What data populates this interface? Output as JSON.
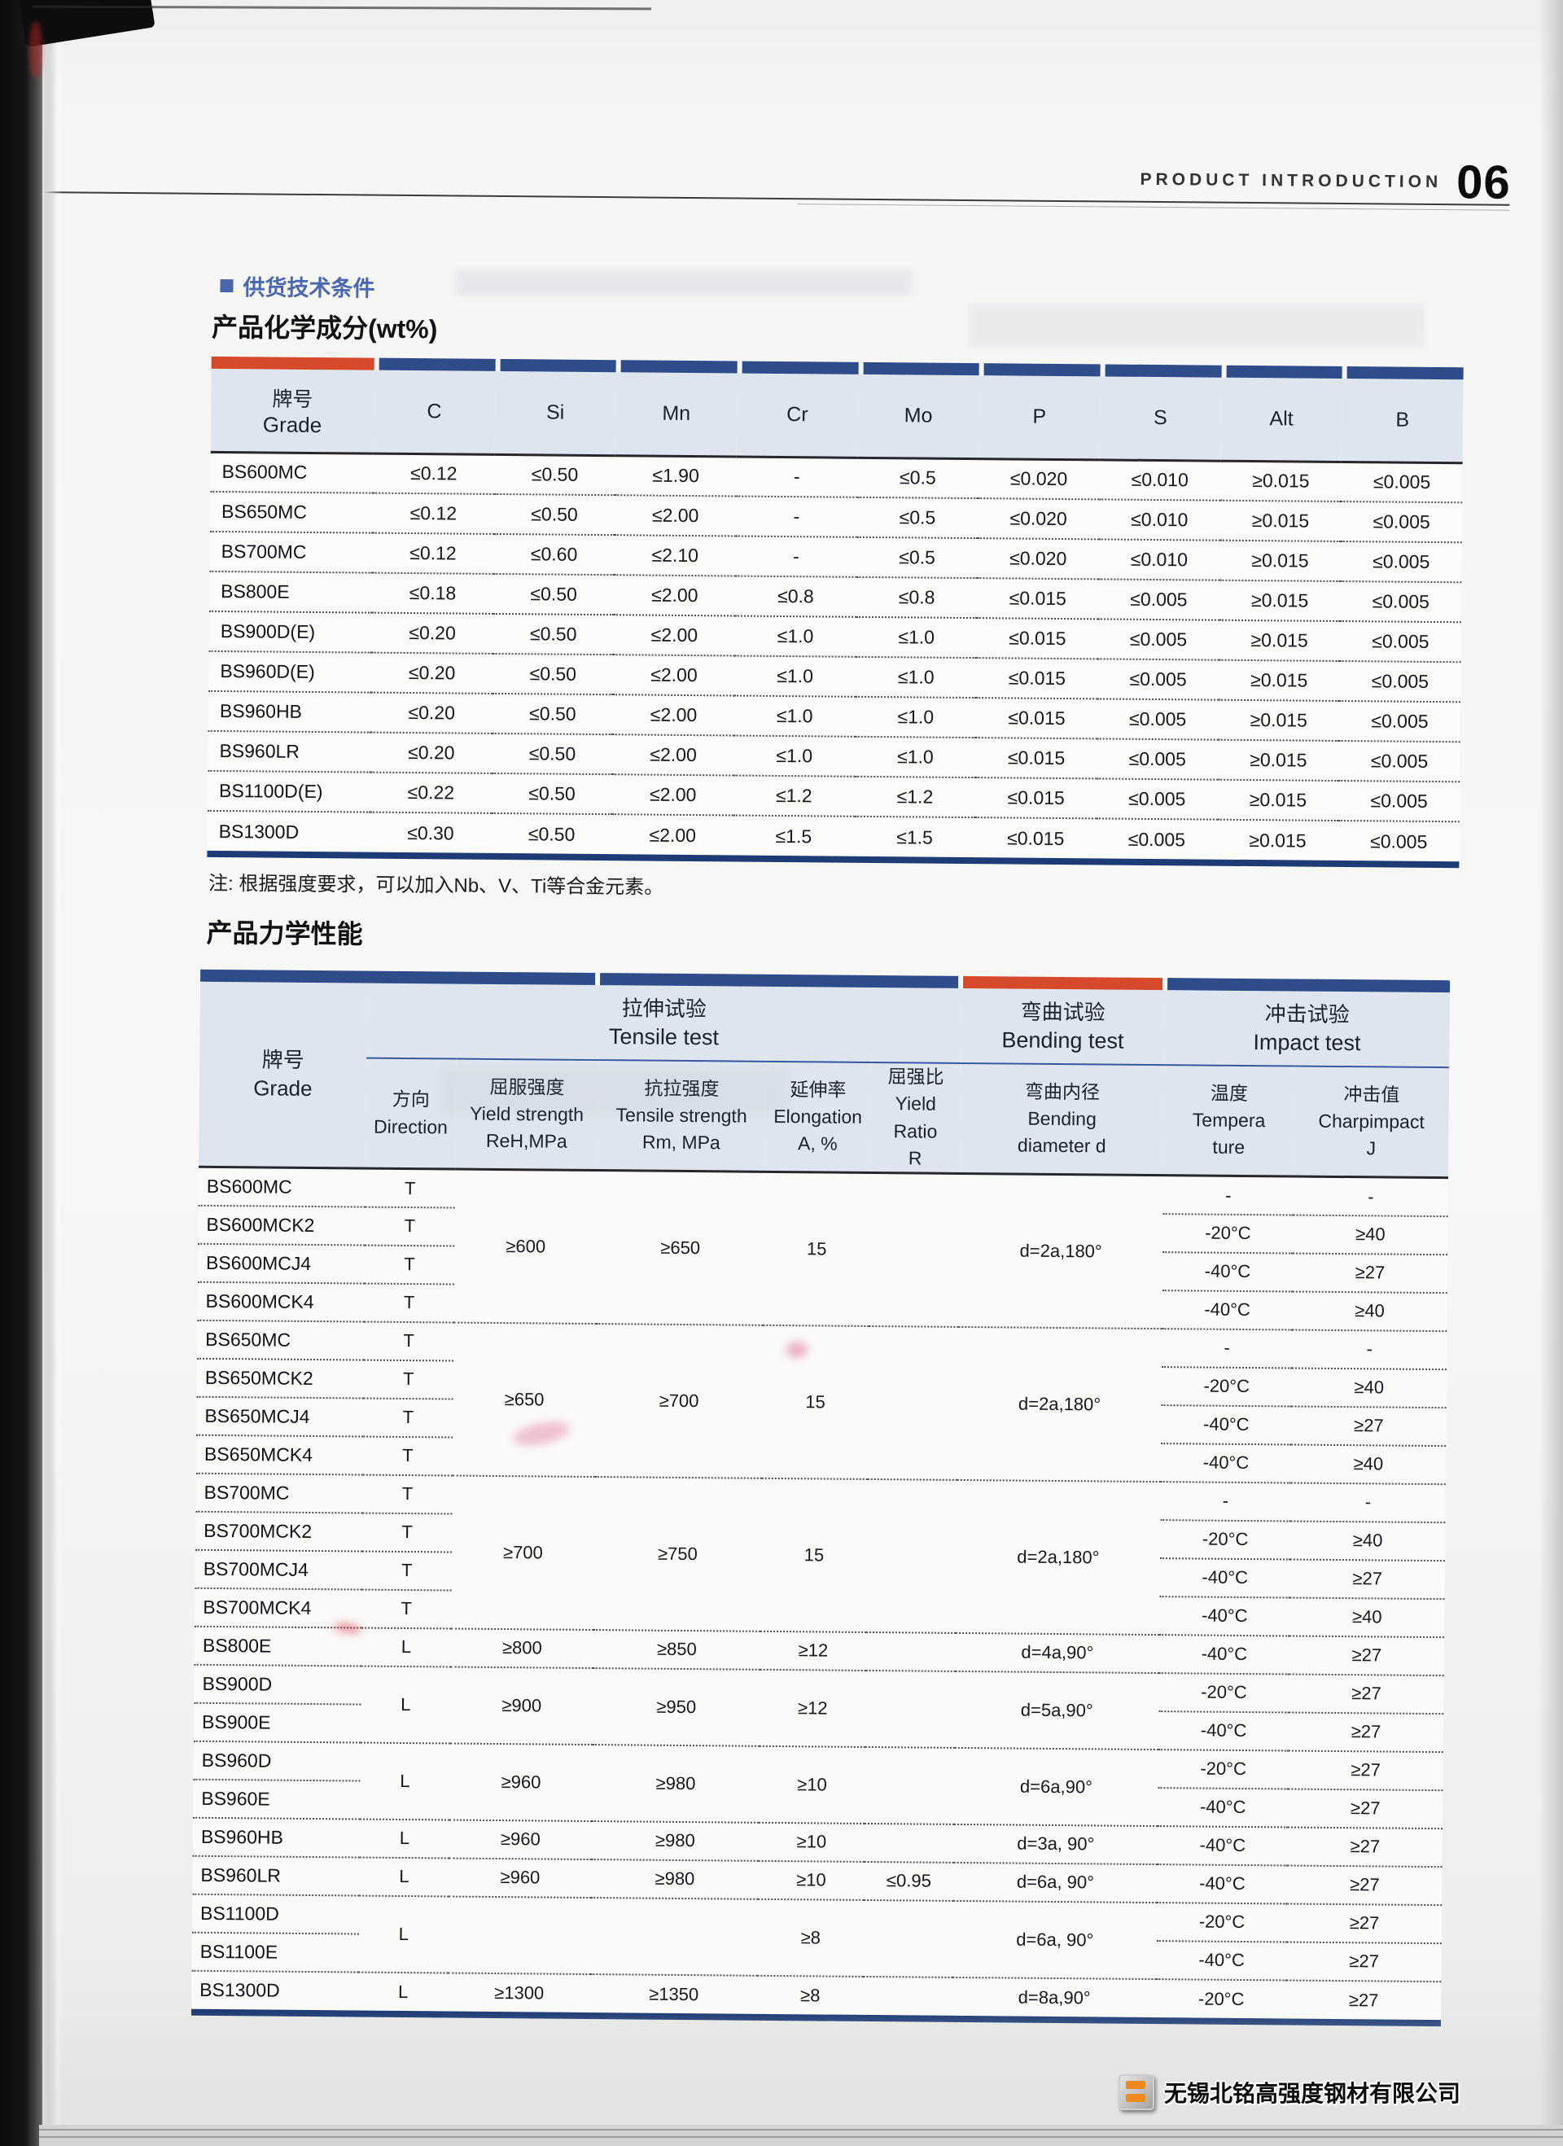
{
  "page": {
    "header": {
      "label": "PRODUCT INTRODUCTION",
      "page_number": "06"
    },
    "section_tag": "供货技术条件",
    "chem_title": "产品化学成分(wt%)",
    "chem_note": "注: 根据强度要求，可以加入Nb、V、Ti等合金元素。",
    "mech_title": "产品力学性能",
    "footer_company": "无锡北铭高强度钢材有限公司"
  },
  "colors": {
    "bar_blue": "#2d4c89",
    "accent_orange": "#d6492a",
    "header_bg": "#dee5ee",
    "table_bottom_navy": "#1d3b74",
    "section_blue": "#4967b1",
    "rule_blue": "#3a58a0"
  },
  "chem_table": {
    "grade_header": {
      "zh": "牌号",
      "en": "Grade"
    },
    "element_columns": [
      "C",
      "Si",
      "Mn",
      "Cr",
      "Mo",
      "P",
      "S",
      "Alt",
      "B"
    ],
    "rows": [
      {
        "grade": "BS600MC",
        "values": [
          "≤0.12",
          "≤0.50",
          "≤1.90",
          "-",
          "≤0.5",
          "≤0.020",
          "≤0.010",
          "≥0.015",
          "≤0.005"
        ]
      },
      {
        "grade": "BS650MC",
        "values": [
          "≤0.12",
          "≤0.50",
          "≤2.00",
          "-",
          "≤0.5",
          "≤0.020",
          "≤0.010",
          "≥0.015",
          "≤0.005"
        ]
      },
      {
        "grade": "BS700MC",
        "values": [
          "≤0.12",
          "≤0.60",
          "≤2.10",
          "-",
          "≤0.5",
          "≤0.020",
          "≤0.010",
          "≥0.015",
          "≤0.005"
        ]
      },
      {
        "grade": "BS800E",
        "values": [
          "≤0.18",
          "≤0.50",
          "≤2.00",
          "≤0.8",
          "≤0.8",
          "≤0.015",
          "≤0.005",
          "≥0.015",
          "≤0.005"
        ]
      },
      {
        "grade": "BS900D(E)",
        "values": [
          "≤0.20",
          "≤0.50",
          "≤2.00",
          "≤1.0",
          "≤1.0",
          "≤0.015",
          "≤0.005",
          "≥0.015",
          "≤0.005"
        ]
      },
      {
        "grade": "BS960D(E)",
        "values": [
          "≤0.20",
          "≤0.50",
          "≤2.00",
          "≤1.0",
          "≤1.0",
          "≤0.015",
          "≤0.005",
          "≥0.015",
          "≤0.005"
        ]
      },
      {
        "grade": "BS960HB",
        "values": [
          "≤0.20",
          "≤0.50",
          "≤2.00",
          "≤1.0",
          "≤1.0",
          "≤0.015",
          "≤0.005",
          "≥0.015",
          "≤0.005"
        ]
      },
      {
        "grade": "BS960LR",
        "values": [
          "≤0.20",
          "≤0.50",
          "≤2.00",
          "≤1.0",
          "≤1.0",
          "≤0.015",
          "≤0.005",
          "≥0.015",
          "≤0.005"
        ]
      },
      {
        "grade": "BS1100D(E)",
        "values": [
          "≤0.22",
          "≤0.50",
          "≤2.00",
          "≤1.2",
          "≤1.2",
          "≤0.015",
          "≤0.005",
          "≥0.015",
          "≤0.005"
        ]
      },
      {
        "grade": "BS1300D",
        "values": [
          "≤0.30",
          "≤0.50",
          "≤2.00",
          "≤1.5",
          "≤1.5",
          "≤0.015",
          "≤0.005",
          "≥0.015",
          "≤0.005"
        ]
      }
    ]
  },
  "mech_table": {
    "grade_header": {
      "zh": "牌号",
      "en": "Grade"
    },
    "groups": [
      {
        "zh": "拉伸试验",
        "en": "Tensile test",
        "span": 5
      },
      {
        "zh": "弯曲试验",
        "en": "Bending test",
        "span": 1
      },
      {
        "zh": "冲击试验",
        "en": "Impact test",
        "span": 2
      }
    ],
    "subcols": [
      {
        "zh": "方向",
        "en": "Direction",
        "unit": ""
      },
      {
        "zh": "屈服强度",
        "en": "Yield strength",
        "unit": "ReH,MPa"
      },
      {
        "zh": "抗拉强度",
        "en": "Tensile strength",
        "unit": "Rm, MPa"
      },
      {
        "zh": "延伸率",
        "en": "Elongation",
        "unit": "A, %"
      },
      {
        "zh": "屈强比",
        "en": "Yield Ratio",
        "unit": "R"
      },
      {
        "zh": "弯曲内径",
        "en": "Bending",
        "unit": "diameter d"
      },
      {
        "zh": "温度",
        "en": "Tempera",
        "unit": "ture"
      },
      {
        "zh": "冲击值",
        "en": "Charpimpact",
        "unit": "J"
      }
    ],
    "rows": [
      {
        "grade": "BS600MC",
        "cells": [
          "T",
          [
            "≥600",
            4
          ],
          [
            "≥650",
            4
          ],
          [
            "15",
            4
          ],
          [
            "",
            4
          ],
          [
            "d=2a,180°",
            4
          ],
          "-",
          "-"
        ]
      },
      {
        "grade": "BS600MCK2",
        "cells": [
          "T",
          null,
          null,
          null,
          null,
          null,
          "-20°C",
          "≥40"
        ]
      },
      {
        "grade": "BS600MCJ4",
        "cells": [
          "T",
          null,
          null,
          null,
          null,
          null,
          "-40°C",
          "≥27"
        ]
      },
      {
        "grade": "BS600MCK4",
        "cells": [
          "T",
          null,
          null,
          null,
          null,
          null,
          "-40°C",
          "≥40"
        ]
      },
      {
        "grade": "BS650MC",
        "cells": [
          "T",
          [
            "≥650",
            4
          ],
          [
            "≥700",
            4
          ],
          [
            "15",
            4
          ],
          [
            "",
            4
          ],
          [
            "d=2a,180°",
            4
          ],
          "-",
          "-"
        ]
      },
      {
        "grade": "BS650MCK2",
        "cells": [
          "T",
          null,
          null,
          null,
          null,
          null,
          "-20°C",
          "≥40"
        ]
      },
      {
        "grade": "BS650MCJ4",
        "cells": [
          "T",
          null,
          null,
          null,
          null,
          null,
          "-40°C",
          "≥27"
        ]
      },
      {
        "grade": "BS650MCK4",
        "cells": [
          "T",
          null,
          null,
          null,
          null,
          null,
          "-40°C",
          "≥40"
        ]
      },
      {
        "grade": "BS700MC",
        "cells": [
          "T",
          [
            "≥700",
            4
          ],
          [
            "≥750",
            4
          ],
          [
            "15",
            4
          ],
          [
            "",
            4
          ],
          [
            "d=2a,180°",
            4
          ],
          "-",
          "-"
        ]
      },
      {
        "grade": "BS700MCK2",
        "cells": [
          "T",
          null,
          null,
          null,
          null,
          null,
          "-20°C",
          "≥40"
        ]
      },
      {
        "grade": "BS700MCJ4",
        "cells": [
          "T",
          null,
          null,
          null,
          null,
          null,
          "-40°C",
          "≥27"
        ]
      },
      {
        "grade": "BS700MCK4",
        "cells": [
          "T",
          null,
          null,
          null,
          null,
          null,
          "-40°C",
          "≥40"
        ]
      },
      {
        "grade": "BS800E",
        "cells": [
          "L",
          "≥800",
          "≥850",
          "≥12",
          "",
          "d=4a,90°",
          "-40°C",
          "≥27"
        ]
      },
      {
        "grade": "BS900D",
        "cells": [
          [
            "L",
            2
          ],
          [
            "≥900",
            2
          ],
          [
            "≥950",
            2
          ],
          [
            "≥12",
            2
          ],
          [
            "",
            2
          ],
          [
            "d=5a,90°",
            2
          ],
          "-20°C",
          "≥27"
        ]
      },
      {
        "grade": "BS900E",
        "cells": [
          null,
          null,
          null,
          null,
          null,
          null,
          "-40°C",
          "≥27"
        ]
      },
      {
        "grade": "BS960D",
        "cells": [
          [
            "L",
            2
          ],
          [
            "≥960",
            2
          ],
          [
            "≥980",
            2
          ],
          [
            "≥10",
            2
          ],
          [
            "",
            2
          ],
          [
            "d=6a,90°",
            2
          ],
          "-20°C",
          "≥27"
        ]
      },
      {
        "grade": "BS960E",
        "cells": [
          null,
          null,
          null,
          null,
          null,
          null,
          "-40°C",
          "≥27"
        ]
      },
      {
        "grade": "BS960HB",
        "cells": [
          "L",
          "≥960",
          "≥980",
          "≥10",
          "",
          "d=3a, 90°",
          "-40°C",
          "≥27"
        ]
      },
      {
        "grade": "BS960LR",
        "cells": [
          "L",
          "≥960",
          "≥980",
          "≥10",
          "≤0.95",
          "d=6a, 90°",
          "-40°C",
          "≥27"
        ]
      },
      {
        "grade": "BS1100D",
        "cells": [
          [
            "L",
            2
          ],
          [
            "",
            2
          ],
          [
            "",
            2
          ],
          [
            "≥8",
            2
          ],
          [
            "",
            2
          ],
          [
            "d=6a, 90°",
            2
          ],
          "-20°C",
          "≥27"
        ]
      },
      {
        "grade": "BS1100E",
        "cells": [
          null,
          null,
          null,
          null,
          null,
          null,
          "-40°C",
          "≥27"
        ]
      },
      {
        "grade": "BS1300D",
        "cells": [
          "L",
          "≥1300",
          "≥1350",
          "≥8",
          "",
          "d=8a,90°",
          "-20°C",
          "≥27"
        ]
      }
    ]
  }
}
